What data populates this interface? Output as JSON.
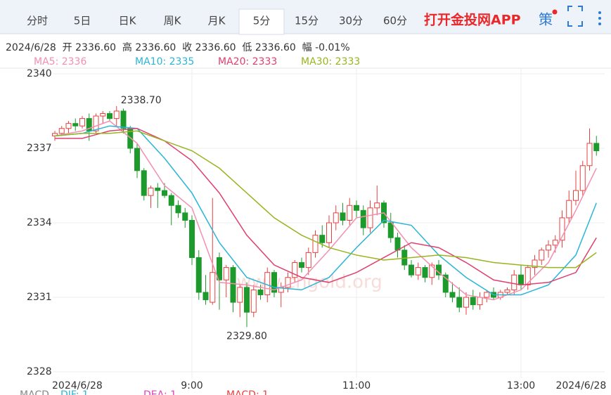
{
  "tabs": [
    "分时",
    "5日",
    "日K",
    "周K",
    "月K",
    "5分",
    "15分",
    "30分",
    "60分"
  ],
  "active_tab": 5,
  "app_link": "打开金投网APP",
  "icon_text": "策",
  "info": "2024/6/28  开 2336.60  高 2336.60  收 2336.60  低 2336.60  幅 -0.01%",
  "macd": [
    "MACD",
    "DIF: 1",
    "DEA: 1",
    "MACD: 1"
  ],
  "chart_data": {
    "type": "candlestick",
    "watermark": "www.cngold.org",
    "categories": [
      "2024/6/28",
      null,
      null,
      null,
      null,
      null,
      null,
      null,
      null,
      null,
      null,
      null,
      null,
      null,
      null,
      null,
      null,
      null,
      null,
      null,
      "9:00",
      null,
      null,
      null,
      null,
      null,
      null,
      null,
      null,
      null,
      null,
      null,
      null,
      null,
      null,
      null,
      null,
      null,
      null,
      null,
      null,
      null,
      null,
      null,
      "11:00",
      null,
      null,
      null,
      null,
      null,
      null,
      null,
      null,
      null,
      null,
      null,
      null,
      null,
      null,
      null,
      null,
      null,
      null,
      null,
      null,
      null,
      null,
      null,
      "13:00",
      null,
      null,
      null,
      null,
      null,
      null,
      null,
      null,
      null,
      null,
      "2024/6/28"
    ],
    "open": [
      2337.5,
      2337.6,
      2337.8,
      2338.0,
      2337.9,
      2338.2,
      2337.7,
      2338.3,
      2338.4,
      2338.2,
      2338.5,
      2337.8,
      2337.0,
      2336.1,
      2335.1,
      2335.4,
      2335.3,
      2335.1,
      2334.7,
      2334.4,
      2334.1,
      2332.6,
      2331.2,
      2330.8,
      2332.6,
      2331.7,
      2332.2,
      2330.8,
      2331.4,
      2330.4,
      2331.3,
      2331.1,
      2332.0,
      2331.2,
      2331.4,
      2331.8,
      2332.4,
      2332.2,
      2332.8,
      2333.5,
      2333.2,
      2334.0,
      2334.4,
      2334.1,
      2334.7,
      2334.5,
      2333.8,
      2334.6,
      2334.8,
      2334.0,
      2333.4,
      2332.9,
      2332.3,
      2331.9,
      2332.2,
      2331.8,
      2332.3,
      2331.9,
      2331.2,
      2331.0,
      2330.6,
      2331.0,
      2330.7,
      2331.0,
      2331.2,
      2331.0,
      2331.2,
      2331.3,
      2331.9,
      2331.5,
      2332.2,
      2332.5,
      2332.9,
      2333.1,
      2333.3,
      2334.2,
      2334.9,
      2335.3,
      2336.3,
      2337.2
    ],
    "high": [
      2337.7,
      2337.9,
      2338.1,
      2338.2,
      2338.3,
      2338.4,
      2338.4,
      2338.5,
      2338.5,
      2338.7,
      2338.6,
      2337.9,
      2337.2,
      2336.2,
      2335.5,
      2335.6,
      2335.6,
      2335.2,
      2334.9,
      2334.6,
      2334.3,
      2332.9,
      2331.9,
      2335.0,
      2332.8,
      2332.3,
      2332.3,
      2331.5,
      2331.6,
      2331.5,
      2331.5,
      2332.2,
      2332.1,
      2331.6,
      2332.0,
      2332.5,
      2332.6,
      2333.0,
      2333.7,
      2333.9,
      2334.3,
      2334.7,
      2334.8,
      2335.0,
      2334.9,
      2334.7,
      2334.9,
      2335.5,
      2334.9,
      2334.4,
      2333.6,
      2333.1,
      2332.5,
      2332.4,
      2332.3,
      2332.4,
      2332.5,
      2332.0,
      2331.6,
      2331.4,
      2331.2,
      2331.3,
      2331.2,
      2331.3,
      2331.4,
      2331.3,
      2331.4,
      2332.1,
      2332.3,
      2332.3,
      2332.7,
      2333.0,
      2333.3,
      2333.5,
      2334.5,
      2335.3,
      2336.1,
      2336.5,
      2337.8,
      2337.5
    ],
    "low": [
      2337.3,
      2337.5,
      2337.6,
      2337.7,
      2337.8,
      2337.3,
      2337.6,
      2338.0,
      2338.1,
      2337.9,
      2337.6,
      2336.8,
      2335.8,
      2334.9,
      2334.6,
      2334.6,
      2335.0,
      2333.9,
      2334.2,
      2333.8,
      2332.3,
      2330.9,
      2330.7,
      2330.7,
      2330.5,
      2331.0,
      2330.4,
      2330.2,
      2329.8,
      2330.2,
      2330.9,
      2330.8,
      2331.0,
      2330.6,
      2331.2,
      2331.6,
      2332.0,
      2331.9,
      2332.6,
      2333.0,
      2333.0,
      2333.7,
      2333.9,
      2333.9,
      2334.2,
      2333.5,
      2333.6,
      2334.3,
      2333.8,
      2333.2,
      2332.6,
      2332.1,
      2331.8,
      2331.7,
      2331.6,
      2331.5,
      2331.7,
      2331.0,
      2330.8,
      2330.4,
      2330.3,
      2330.5,
      2330.5,
      2330.8,
      2330.9,
      2330.9,
      2331.1,
      2331.1,
      2331.3,
      2331.3,
      2331.9,
      2332.3,
      2332.6,
      2332.8,
      2333.0,
      2334.0,
      2334.7,
      2335.1,
      2336.1,
      2336.7
    ],
    "close": [
      2337.6,
      2337.8,
      2338.0,
      2337.9,
      2338.2,
      2337.7,
      2338.3,
      2338.4,
      2338.2,
      2338.5,
      2337.8,
      2337.0,
      2336.1,
      2335.1,
      2335.4,
      2335.3,
      2335.1,
      2334.7,
      2334.4,
      2334.1,
      2332.6,
      2331.2,
      2330.9,
      2332.0,
      2331.7,
      2332.2,
      2330.8,
      2331.4,
      2330.4,
      2331.3,
      2331.1,
      2332.0,
      2331.2,
      2331.4,
      2331.8,
      2332.4,
      2332.2,
      2332.8,
      2333.5,
      2333.2,
      2334.0,
      2334.4,
      2334.1,
      2334.7,
      2334.5,
      2333.8,
      2334.6,
      2334.8,
      2334.0,
      2333.4,
      2332.9,
      2332.3,
      2331.9,
      2332.2,
      2331.8,
      2332.3,
      2331.9,
      2331.2,
      2331.0,
      2330.6,
      2331.0,
      2330.7,
      2331.0,
      2331.2,
      2331.0,
      2331.2,
      2331.3,
      2331.9,
      2331.5,
      2332.2,
      2332.5,
      2332.9,
      2333.1,
      2333.3,
      2334.2,
      2334.9,
      2335.3,
      2336.3,
      2337.2,
      2336.9
    ],
    "up_color": "#e8403f",
    "down_color": "#1c9b2c",
    "max_label": "2338.70",
    "min_label": "2329.80",
    "ma": {
      "x": [
        0,
        4,
        8,
        12,
        16,
        20,
        24,
        28,
        32,
        36,
        40,
        44,
        48,
        52,
        56,
        60,
        64,
        68,
        72,
        76,
        79
      ],
      "series": [
        {
          "name": "MA5: 2336",
          "color": "#f290b0",
          "values": [
            2337.5,
            2337.7,
            2338.1,
            2337.2,
            2335.5,
            2334.6,
            2331.6,
            2331.5,
            2331.3,
            2331.7,
            2332.9,
            2334.2,
            2334.4,
            2333.0,
            2332.0,
            2331.1,
            2330.9,
            2331.3,
            2332.4,
            2334.5,
            2336.2
          ]
        },
        {
          "name": "MA10: 2335",
          "color": "#2bb5d6",
          "values": [
            2337.5,
            2337.6,
            2337.9,
            2337.8,
            2336.6,
            2335.2,
            2333.2,
            2331.8,
            2331.4,
            2331.3,
            2331.8,
            2333.0,
            2334.1,
            2333.9,
            2332.7,
            2331.8,
            2331.1,
            2331.1,
            2331.5,
            2332.7,
            2334.8
          ]
        },
        {
          "name": "MA20: 2333",
          "color": "#e0406e",
          "values": [
            2337.4,
            2337.4,
            2337.7,
            2337.8,
            2337.3,
            2336.5,
            2335.2,
            2333.5,
            2332.3,
            2331.8,
            2331.6,
            2332.0,
            2332.6,
            2333.2,
            2333.0,
            2332.4,
            2331.7,
            2331.5,
            2331.6,
            2332.0,
            2333.4
          ]
        },
        {
          "name": "MA30: 2333",
          "color": "#98b520",
          "values": [
            2337.5,
            2337.6,
            2337.6,
            2337.7,
            2337.3,
            2336.9,
            2336.2,
            2335.2,
            2334.2,
            2333.5,
            2333.0,
            2332.7,
            2332.5,
            2332.6,
            2332.7,
            2332.6,
            2332.4,
            2332.3,
            2332.2,
            2332.2,
            2332.8
          ]
        }
      ]
    },
    "ylim": [
      2328,
      2340
    ],
    "yticks": [
      2340,
      2337,
      2334,
      2331,
      2328
    ],
    "grid": true
  }
}
